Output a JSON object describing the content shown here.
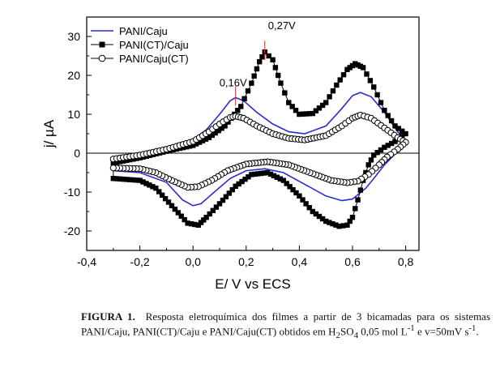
{
  "chart_data": {
    "type": "line",
    "xlabel": "E/ V vs ECS",
    "ylabel": "j/ µA",
    "xlim": [
      -0.4,
      0.85
    ],
    "ylim": [
      -25,
      35
    ],
    "xticks": [
      "-0,4",
      "-0,2",
      "0,0",
      "0,2",
      "0,4",
      "0,6",
      "0,8"
    ],
    "xtick_values": [
      -0.4,
      -0.2,
      0.0,
      0.2,
      0.4,
      0.6,
      0.8
    ],
    "yticks": [
      "-20",
      "-10",
      "0",
      "10",
      "20",
      "30"
    ],
    "ytick_values": [
      -20,
      -10,
      0,
      10,
      20,
      30
    ],
    "zero_line": true,
    "legend_position": "top-left",
    "series": [
      {
        "name": "PANI/Caju",
        "color": "#2b2bd6",
        "marker": "line",
        "forward": [
          [
            -0.3,
            -2.5
          ],
          [
            -0.2,
            -1.2
          ],
          [
            -0.1,
            0.8
          ],
          [
            0.0,
            3.5
          ],
          [
            0.05,
            6.0
          ],
          [
            0.1,
            10.0
          ],
          [
            0.14,
            13.5
          ],
          [
            0.16,
            14.3
          ],
          [
            0.19,
            13.5
          ],
          [
            0.24,
            10.5
          ],
          [
            0.3,
            7.5
          ],
          [
            0.36,
            5.5
          ],
          [
            0.42,
            5.0
          ],
          [
            0.5,
            7.0
          ],
          [
            0.56,
            11.5
          ],
          [
            0.6,
            14.8
          ],
          [
            0.63,
            15.6
          ],
          [
            0.67,
            14.5
          ],
          [
            0.72,
            10.5
          ],
          [
            0.77,
            5.5
          ],
          [
            0.8,
            3.0
          ]
        ],
        "reverse": [
          [
            0.8,
            3.0
          ],
          [
            0.77,
            0.5
          ],
          [
            0.72,
            -3.0
          ],
          [
            0.68,
            -6.5
          ],
          [
            0.65,
            -9.0
          ],
          [
            0.6,
            -11.8
          ],
          [
            0.56,
            -12.2
          ],
          [
            0.5,
            -11.0
          ],
          [
            0.42,
            -8.0
          ],
          [
            0.34,
            -5.0
          ],
          [
            0.27,
            -4.0
          ],
          [
            0.2,
            -4.5
          ],
          [
            0.14,
            -6.5
          ],
          [
            0.08,
            -10.0
          ],
          [
            0.03,
            -13.0
          ],
          [
            0.0,
            -13.5
          ],
          [
            -0.04,
            -12.0
          ],
          [
            -0.1,
            -7.5
          ],
          [
            -0.2,
            -5.0
          ],
          [
            -0.3,
            -4.5
          ]
        ]
      },
      {
        "name": "PANI(CT)/Caju",
        "color": "#000000",
        "marker": "filled-square",
        "forward": [
          [
            -0.3,
            -2.5
          ],
          [
            -0.2,
            -1.2
          ],
          [
            -0.1,
            0.5
          ],
          [
            0.0,
            2.0
          ],
          [
            0.06,
            4.0
          ],
          [
            0.12,
            7.0
          ],
          [
            0.18,
            12.0
          ],
          [
            0.22,
            18.0
          ],
          [
            0.25,
            23.5
          ],
          [
            0.27,
            26.0
          ],
          [
            0.3,
            24.0
          ],
          [
            0.33,
            18.0
          ],
          [
            0.36,
            13.0
          ],
          [
            0.4,
            10.0
          ],
          [
            0.45,
            10.2
          ],
          [
            0.5,
            13.0
          ],
          [
            0.54,
            17.5
          ],
          [
            0.58,
            21.5
          ],
          [
            0.61,
            23.0
          ],
          [
            0.64,
            22.0
          ],
          [
            0.68,
            17.0
          ],
          [
            0.72,
            11.0
          ],
          [
            0.76,
            7.0
          ],
          [
            0.8,
            5.0
          ]
        ],
        "reverse": [
          [
            0.8,
            5.0
          ],
          [
            0.76,
            3.0
          ],
          [
            0.72,
            1.5
          ],
          [
            0.68,
            -0.5
          ],
          [
            0.66,
            -3.0
          ],
          [
            0.64,
            -7.0
          ],
          [
            0.62,
            -12.0
          ],
          [
            0.6,
            -16.5
          ],
          [
            0.58,
            -18.5
          ],
          [
            0.55,
            -18.8
          ],
          [
            0.5,
            -17.5
          ],
          [
            0.45,
            -15.0
          ],
          [
            0.4,
            -11.0
          ],
          [
            0.34,
            -7.0
          ],
          [
            0.28,
            -5.0
          ],
          [
            0.22,
            -5.5
          ],
          [
            0.16,
            -8.5
          ],
          [
            0.1,
            -13.0
          ],
          [
            0.05,
            -16.5
          ],
          [
            0.02,
            -18.5
          ],
          [
            -0.02,
            -18.0
          ],
          [
            -0.08,
            -13.5
          ],
          [
            -0.14,
            -9.0
          ],
          [
            -0.2,
            -7.0
          ],
          [
            -0.3,
            -6.5
          ]
        ]
      },
      {
        "name": "PANI/Caju(CT)",
        "color": "#000000",
        "marker": "open-circle",
        "forward": [
          [
            -0.3,
            -1.5
          ],
          [
            -0.2,
            -0.5
          ],
          [
            -0.1,
            1.0
          ],
          [
            0.0,
            3.0
          ],
          [
            0.06,
            5.5
          ],
          [
            0.1,
            7.5
          ],
          [
            0.14,
            9.2
          ],
          [
            0.16,
            9.5
          ],
          [
            0.19,
            9.0
          ],
          [
            0.24,
            7.0
          ],
          [
            0.3,
            5.0
          ],
          [
            0.36,
            3.8
          ],
          [
            0.42,
            3.4
          ],
          [
            0.5,
            4.5
          ],
          [
            0.56,
            7.0
          ],
          [
            0.6,
            9.0
          ],
          [
            0.63,
            9.8
          ],
          [
            0.67,
            9.0
          ],
          [
            0.72,
            6.5
          ],
          [
            0.77,
            4.0
          ],
          [
            0.8,
            2.8
          ]
        ],
        "reverse": [
          [
            0.8,
            2.8
          ],
          [
            0.77,
            1.0
          ],
          [
            0.73,
            -1.0
          ],
          [
            0.7,
            -3.0
          ],
          [
            0.66,
            -5.5
          ],
          [
            0.62,
            -7.2
          ],
          [
            0.58,
            -7.6
          ],
          [
            0.52,
            -7.0
          ],
          [
            0.44,
            -5.0
          ],
          [
            0.36,
            -3.0
          ],
          [
            0.28,
            -2.2
          ],
          [
            0.2,
            -2.8
          ],
          [
            0.13,
            -4.5
          ],
          [
            0.07,
            -7.0
          ],
          [
            0.02,
            -8.6
          ],
          [
            -0.02,
            -8.8
          ],
          [
            -0.08,
            -7.0
          ],
          [
            -0.14,
            -5.0
          ],
          [
            -0.2,
            -4.0
          ],
          [
            -0.3,
            -3.8
          ]
        ]
      }
    ],
    "annotations": [
      {
        "text": "0,16V",
        "x": 0.16,
        "y": 14.3
      },
      {
        "text": "0,27V",
        "x": 0.27,
        "y": 26.0
      }
    ]
  },
  "caption": {
    "label": "FIGURA 1.",
    "text_1": "Resposta eletroquímica dos filmes a partir de 3 bicamadas para os sistemas PANI/Caju, PANI(CT)/Caju e PANI/Caju(CT) obtidos em H",
    "sub_1": "2",
    "text_2": "SO",
    "sub_2": "4",
    "text_3": " 0,05 mol L",
    "sup_1": "-1",
    "text_4": " e v=50mV s",
    "sup_2": "-1",
    "text_5": "."
  }
}
